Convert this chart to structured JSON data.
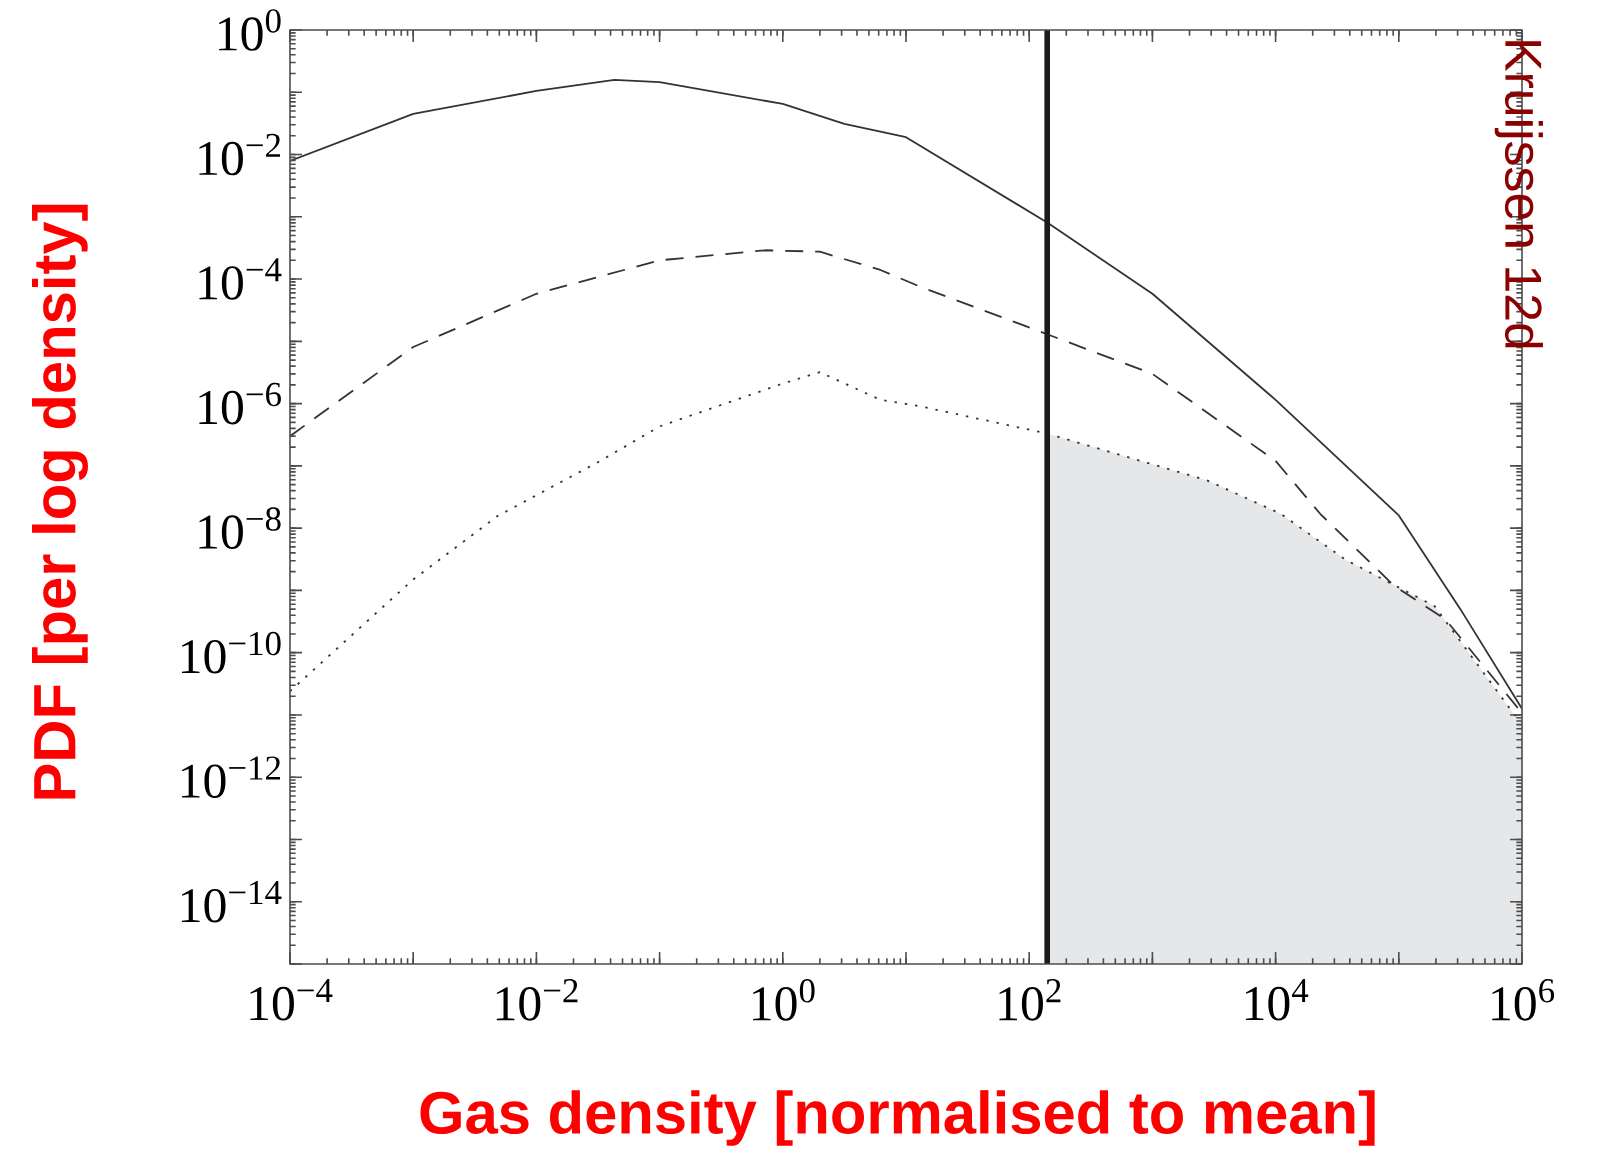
{
  "chart_data": {
    "type": "line",
    "xlabel": "Gas density [normalised to mean]",
    "ylabel": "PDF [per log density]",
    "annotations": [
      "Kruijssen 12d"
    ],
    "log": "xy",
    "xlim": [
      0.0001,
      1000000
    ],
    "ylim": [
      1e-15,
      1
    ],
    "xticks": [
      {
        "value": 0.0001,
        "label": "10$^{−4}$"
      },
      {
        "value": 0.001,
        "label": null
      },
      {
        "value": 0.01,
        "label": "10$^{−2}$"
      },
      {
        "value": 0.1,
        "label": null
      },
      {
        "value": 1,
        "label": "10$^{0}$"
      },
      {
        "value": 10,
        "label": null
      },
      {
        "value": 100,
        "label": "10$^{2}$"
      },
      {
        "value": 1000,
        "label": null
      },
      {
        "value": 10000,
        "label": "10$^{4}$"
      },
      {
        "value": 100000,
        "label": null
      },
      {
        "value": 1000000,
        "label": "10$^{6}$"
      }
    ],
    "yticks": [
      {
        "value": 1e-15,
        "label": null
      },
      {
        "value": 1e-14,
        "label": "10$^{−14}$"
      },
      {
        "value": 1e-13,
        "label": null
      },
      {
        "value": 1e-12,
        "label": "10$^{−12}$"
      },
      {
        "value": 1e-11,
        "label": null
      },
      {
        "value": 1e-10,
        "label": "10$^{−10}$"
      },
      {
        "value": 1e-09,
        "label": null
      },
      {
        "value": 1e-08,
        "label": "10$^{−8}$"
      },
      {
        "value": 1e-07,
        "label": null
      },
      {
        "value": 1e-06,
        "label": "10$^{−6}$"
      },
      {
        "value": 1e-05,
        "label": null
      },
      {
        "value": 0.0001,
        "label": "10$^{−4}$"
      },
      {
        "value": 0.001,
        "label": null
      },
      {
        "value": 0.01,
        "label": "10$^{−2}$"
      },
      {
        "value": 0.1,
        "label": null
      },
      {
        "value": 1,
        "label": "10$^{0}$"
      }
    ],
    "series": [
      {
        "type": "area",
        "color": "#e6e7e9",
        "x": [
          140,
          2750,
          11000,
          37000,
          195000,
          870000,
          1000000
        ],
        "values": [
          3.3e-07,
          5.9e-08,
          1.7e-08,
          3.1e-09,
          5.6e-10,
          1e-11,
          8.9e-12
        ]
      },
      {
        "color": "#333333",
        "line_style": "solid",
        "x": [
          0.0001,
          0.001,
          0.01,
          0.043,
          0.1,
          1,
          3.16,
          10,
          140,
          1000,
          10000,
          100000,
          316000,
          1000000
        ],
        "values": [
          0.0079,
          0.045,
          0.105,
          0.158,
          0.145,
          0.065,
          0.031,
          0.019,
          0.00081,
          5.8e-05,
          1.15e-06,
          1.6e-08,
          5e-10,
          1.26e-11
        ]
      },
      {
        "color": "#333333",
        "line_style": "dashed",
        "x": [
          0.0001,
          0.001,
          0.01,
          0.1,
          0.72,
          2.0,
          6.2,
          12.9,
          140,
          1000,
          10000,
          23000,
          91000,
          240000,
          1000000
        ],
        "values": [
          3e-07,
          8.1e-06,
          5.8e-05,
          0.0002,
          0.00029,
          0.000275,
          0.00014,
          7.6e-05,
          1.3e-05,
          3e-06,
          1.2e-07,
          1.7e-08,
          1.2e-09,
          3.4e-10,
          1.07e-11
        ]
      },
      {
        "color": "#333333",
        "line_style": "dotted",
        "x": [
          0.0001,
          0.001,
          0.0048,
          0.033,
          0.1,
          1,
          2.0,
          6.2,
          12.9,
          140,
          2750,
          11000,
          37000,
          195000,
          870000,
          1000000
        ],
        "values": [
          2.4e-11,
          1.5e-09,
          1.55e-08,
          1.2e-07,
          4.3e-07,
          2.1e-06,
          3.2e-06,
          1.15e-06,
          9.1e-07,
          3.3e-07,
          5.9e-08,
          1.7e-08,
          3.1e-09,
          5.6e-10,
          1e-11,
          8.9e-12
        ]
      }
    ],
    "ref_lines": [
      {
        "axis": "x",
        "value": 140,
        "color": "#1a1a1a"
      }
    ]
  }
}
